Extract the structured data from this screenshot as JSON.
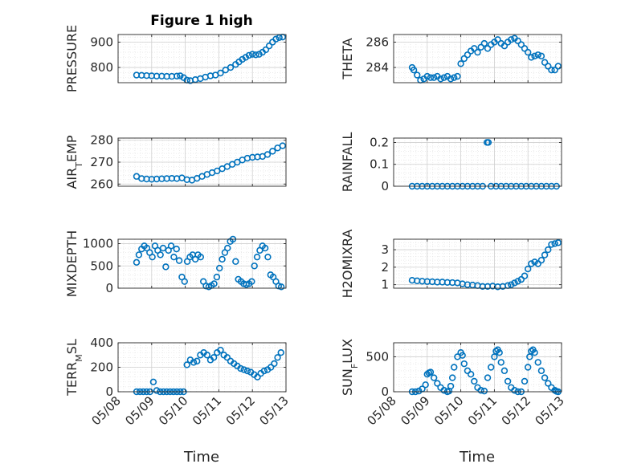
{
  "title": "Figure 1 high",
  "marker_color": "#0072bd",
  "xlabel": "Time",
  "x_ticks": [
    "05/08",
    "05/09",
    "05/10",
    "05/11",
    "05/12",
    "05/13"
  ],
  "chart_data": [
    {
      "type": "scatter",
      "ylabel": "PRESSURE",
      "xlim": [
        0,
        5
      ],
      "ylim": [
        740,
        930
      ],
      "yticks": [
        800,
        900
      ],
      "grid": true,
      "x": [
        0.55,
        0.7,
        0.85,
        1.0,
        1.15,
        1.3,
        1.45,
        1.6,
        1.75,
        1.85,
        1.95,
        2.05,
        2.15,
        2.3,
        2.45,
        2.6,
        2.75,
        2.9,
        3.05,
        3.2,
        3.35,
        3.5,
        3.6,
        3.7,
        3.8,
        3.9,
        4.0,
        4.1,
        4.2,
        4.3,
        4.4,
        4.5,
        4.6,
        4.7,
        4.8,
        4.9
      ],
      "y": [
        770,
        769,
        768,
        767,
        766,
        766,
        765,
        765,
        766,
        767,
        760,
        750,
        748,
        752,
        756,
        762,
        767,
        770,
        778,
        790,
        800,
        812,
        822,
        832,
        840,
        848,
        852,
        850,
        852,
        860,
        870,
        885,
        900,
        912,
        918,
        920
      ]
    },
    {
      "type": "scatter",
      "ylabel": "THETA",
      "xlim": [
        0,
        5
      ],
      "ylim": [
        282.8,
        286.6
      ],
      "yticks": [
        284,
        286
      ],
      "grid": true,
      "x": [
        0.55,
        0.6,
        0.7,
        0.8,
        0.9,
        1.0,
        1.1,
        1.2,
        1.3,
        1.4,
        1.5,
        1.6,
        1.7,
        1.8,
        1.9,
        2.0,
        2.1,
        2.2,
        2.3,
        2.4,
        2.5,
        2.6,
        2.7,
        2.8,
        2.9,
        3.0,
        3.1,
        3.2,
        3.3,
        3.4,
        3.5,
        3.6,
        3.7,
        3.8,
        3.9,
        4.0,
        4.1,
        4.2,
        4.3,
        4.4,
        4.5,
        4.6,
        4.7,
        4.8,
        4.9
      ],
      "y": [
        284.0,
        283.8,
        283.4,
        283.0,
        283.1,
        283.3,
        283.2,
        283.2,
        283.3,
        283.1,
        283.2,
        283.3,
        283.1,
        283.2,
        283.3,
        284.3,
        284.7,
        285.0,
        285.3,
        285.5,
        285.2,
        285.6,
        285.9,
        285.5,
        285.8,
        286.0,
        286.2,
        285.9,
        285.7,
        286.0,
        286.2,
        286.3,
        286.1,
        285.8,
        285.5,
        285.2,
        284.8,
        284.9,
        285.0,
        284.9,
        284.4,
        284.1,
        283.8,
        283.8,
        284.1
      ]
    },
    {
      "type": "scatter",
      "ylabel": "AIR_TEMP",
      "xlim": [
        0,
        5
      ],
      "ylim": [
        259,
        281
      ],
      "yticks": [
        260,
        270,
        280
      ],
      "grid": true,
      "x": [
        0.55,
        0.7,
        0.85,
        1.0,
        1.15,
        1.3,
        1.45,
        1.6,
        1.75,
        1.9,
        2.05,
        2.2,
        2.35,
        2.5,
        2.65,
        2.8,
        2.95,
        3.1,
        3.25,
        3.4,
        3.55,
        3.7,
        3.85,
        4.0,
        4.15,
        4.3,
        4.45,
        4.6,
        4.75,
        4.9
      ],
      "y": [
        263.5,
        262.5,
        262.3,
        262.2,
        262.3,
        262.4,
        262.5,
        262.6,
        262.5,
        262.8,
        262.0,
        261.8,
        262.6,
        263.5,
        264.4,
        265.2,
        266.0,
        267.0,
        268.0,
        269.0,
        270.0,
        271.0,
        271.8,
        272.2,
        272.4,
        272.6,
        273.5,
        275.0,
        276.5,
        277.5
      ]
    },
    {
      "type": "scatter",
      "ylabel": "RAINFALL",
      "xlim": [
        0,
        5
      ],
      "ylim": [
        0,
        0.22
      ],
      "yticks": [
        0,
        0.1,
        0.2
      ],
      "grid": true,
      "x": [
        0.55,
        0.7,
        0.85,
        1.0,
        1.15,
        1.3,
        1.45,
        1.6,
        1.75,
        1.9,
        2.05,
        2.2,
        2.35,
        2.5,
        2.65,
        2.78,
        2.82,
        2.9,
        3.05,
        3.2,
        3.35,
        3.5,
        3.65,
        3.8,
        3.95,
        4.1,
        4.25,
        4.4,
        4.55,
        4.7,
        4.85
      ],
      "y": [
        0,
        0,
        0,
        0,
        0,
        0,
        0,
        0,
        0,
        0,
        0,
        0,
        0,
        0,
        0,
        0.2,
        0.2,
        0,
        0,
        0,
        0,
        0,
        0,
        0,
        0,
        0,
        0,
        0,
        0,
        0,
        0
      ]
    },
    {
      "type": "scatter",
      "ylabel": "MIXDEPTH",
      "xlim": [
        0,
        5
      ],
      "ylim": [
        0,
        1100
      ],
      "yticks": [
        0,
        500,
        1000
      ],
      "grid": true,
      "x": [
        0.55,
        0.62,
        0.7,
        0.78,
        0.86,
        0.94,
        1.02,
        1.1,
        1.18,
        1.26,
        1.34,
        1.42,
        1.5,
        1.58,
        1.66,
        1.74,
        1.82,
        1.9,
        1.98,
        2.06,
        2.14,
        2.22,
        2.3,
        2.38,
        2.46,
        2.54,
        2.62,
        2.7,
        2.78,
        2.86,
        2.94,
        3.02,
        3.1,
        3.18,
        3.26,
        3.34,
        3.42,
        3.5,
        3.58,
        3.66,
        3.74,
        3.82,
        3.9,
        3.98,
        4.06,
        4.14,
        4.22,
        4.3,
        4.38,
        4.46,
        4.54,
        4.62,
        4.7,
        4.78,
        4.86
      ],
      "y": [
        580,
        750,
        880,
        950,
        900,
        800,
        700,
        950,
        850,
        750,
        900,
        480,
        850,
        950,
        700,
        880,
        620,
        250,
        150,
        600,
        700,
        750,
        650,
        750,
        700,
        150,
        50,
        30,
        60,
        100,
        250,
        450,
        650,
        800,
        900,
        1050,
        1100,
        600,
        200,
        150,
        100,
        80,
        100,
        150,
        500,
        700,
        850,
        950,
        900,
        700,
        300,
        250,
        150,
        50,
        30
      ]
    },
    {
      "type": "scatter",
      "ylabel": "H2OMIXRA",
      "xlim": [
        0,
        5
      ],
      "ylim": [
        0.8,
        3.6
      ],
      "yticks": [
        1,
        2,
        3
      ],
      "grid": true,
      "x": [
        0.55,
        0.7,
        0.85,
        1.0,
        1.15,
        1.3,
        1.45,
        1.6,
        1.75,
        1.9,
        2.05,
        2.2,
        2.35,
        2.5,
        2.65,
        2.8,
        2.95,
        3.1,
        3.25,
        3.4,
        3.5,
        3.6,
        3.7,
        3.8,
        3.9,
        4.0,
        4.1,
        4.2,
        4.3,
        4.4,
        4.5,
        4.6,
        4.7,
        4.8,
        4.9
      ],
      "y": [
        1.25,
        1.22,
        1.2,
        1.18,
        1.17,
        1.15,
        1.15,
        1.13,
        1.12,
        1.1,
        1.05,
        1.0,
        0.98,
        0.95,
        0.9,
        0.9,
        0.92,
        0.88,
        0.9,
        0.95,
        1.0,
        1.1,
        1.2,
        1.3,
        1.5,
        1.9,
        2.2,
        2.3,
        2.2,
        2.4,
        2.7,
        3.0,
        3.3,
        3.35,
        3.4
      ]
    },
    {
      "type": "scatter",
      "ylabel": "TERR_MSL",
      "xlim": [
        0,
        5
      ],
      "ylim": [
        0,
        400
      ],
      "yticks": [
        0,
        200,
        400
      ],
      "grid": true,
      "x": [
        0.55,
        0.65,
        0.75,
        0.85,
        0.95,
        1.05,
        1.15,
        1.25,
        1.35,
        1.45,
        1.55,
        1.65,
        1.75,
        1.85,
        1.95,
        2.05,
        2.15,
        2.25,
        2.35,
        2.45,
        2.55,
        2.65,
        2.75,
        2.85,
        2.95,
        3.05,
        3.15,
        3.25,
        3.35,
        3.45,
        3.55,
        3.65,
        3.75,
        3.85,
        3.95,
        4.05,
        4.15,
        4.25,
        4.35,
        4.45,
        4.55,
        4.65,
        4.75,
        4.85
      ],
      "y": [
        0,
        0,
        0,
        0,
        0,
        80,
        10,
        0,
        0,
        0,
        0,
        0,
        0,
        0,
        0,
        220,
        260,
        240,
        250,
        300,
        320,
        300,
        260,
        280,
        320,
        340,
        300,
        280,
        250,
        230,
        210,
        190,
        180,
        170,
        160,
        140,
        120,
        150,
        170,
        180,
        200,
        230,
        280,
        320
      ]
    },
    {
      "type": "scatter",
      "ylabel": "SUN_FLUX",
      "xlim": [
        0,
        5
      ],
      "ylim": [
        0,
        700
      ],
      "yticks": [
        0,
        500
      ],
      "grid": true,
      "x": [
        0.55,
        0.65,
        0.75,
        0.85,
        0.95,
        1.0,
        1.05,
        1.1,
        1.2,
        1.3,
        1.4,
        1.5,
        1.6,
        1.65,
        1.7,
        1.75,
        1.8,
        1.9,
        2.0,
        2.05,
        2.1,
        2.2,
        2.3,
        2.4,
        2.5,
        2.6,
        2.7,
        2.8,
        2.9,
        3.0,
        3.05,
        3.1,
        3.15,
        3.2,
        3.3,
        3.4,
        3.5,
        3.6,
        3.7,
        3.8,
        3.9,
        4.0,
        4.05,
        4.1,
        4.15,
        4.2,
        4.3,
        4.4,
        4.5,
        4.6,
        4.7,
        4.8,
        4.85,
        4.9
      ],
      "y": [
        0,
        0,
        10,
        40,
        100,
        250,
        270,
        280,
        200,
        120,
        60,
        20,
        0,
        10,
        80,
        200,
        350,
        500,
        560,
        520,
        400,
        300,
        250,
        150,
        60,
        20,
        10,
        200,
        350,
        500,
        580,
        600,
        560,
        420,
        300,
        150,
        60,
        20,
        0,
        0,
        150,
        350,
        500,
        580,
        600,
        560,
        420,
        300,
        200,
        120,
        60,
        20,
        5,
        0
      ]
    }
  ]
}
